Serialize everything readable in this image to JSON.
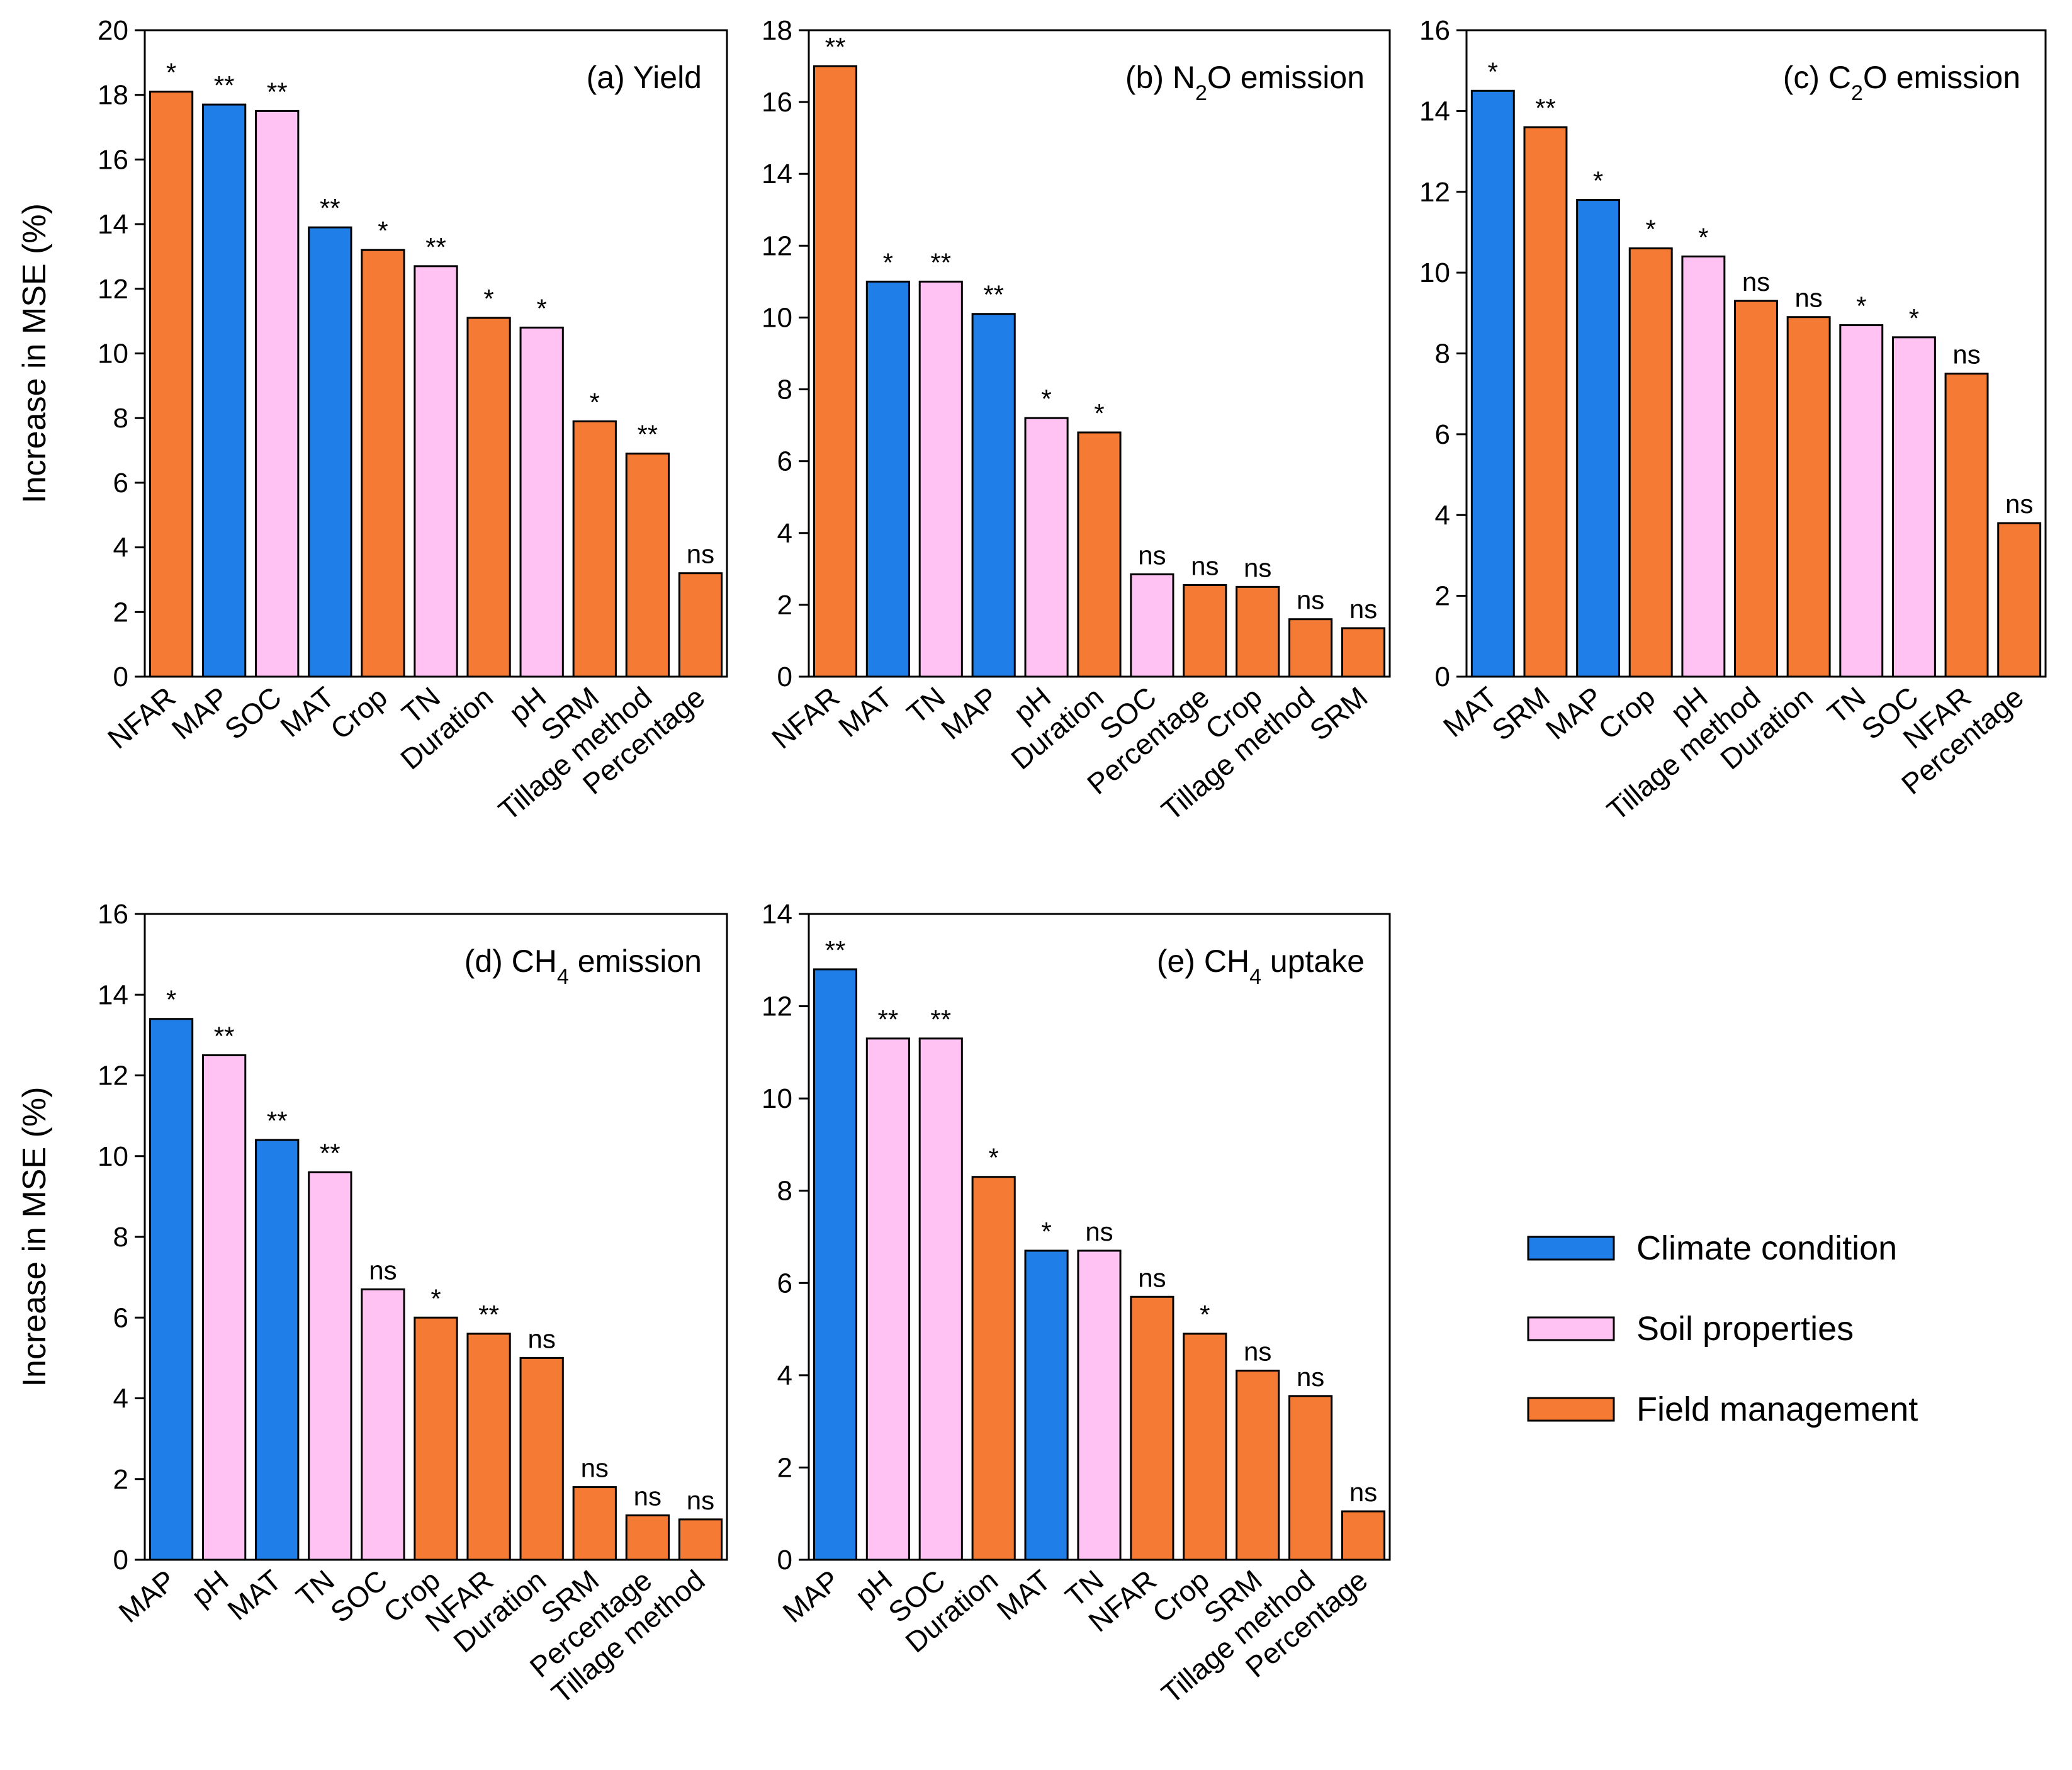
{
  "figure": {
    "colors": {
      "Climate condition": "#1f7ee8",
      "Soil properties": "#ffc2f2",
      "Field management": "#f57a33"
    },
    "legend": [
      {
        "label": "Climate condition",
        "group": "Climate condition"
      },
      {
        "label": "Soil properties",
        "group": "Soil properties"
      },
      {
        "label": "Field management",
        "group": "Field management"
      }
    ]
  },
  "chart_data": [
    {
      "type": "bar",
      "title": "(a) Yield",
      "title_parts": {
        "pre": "(a) Yield",
        "sub": "",
        "post": ""
      },
      "ylabel": "Increase in MSE (%)",
      "xlabel": "",
      "ylim": [
        0,
        20
      ],
      "yticks": [
        0,
        2,
        4,
        6,
        8,
        10,
        12,
        14,
        16,
        18,
        20
      ],
      "categories": [
        "NFAR",
        "MAP",
        "SOC",
        "MAT",
        "Crop",
        "TN",
        "Duration",
        "pH",
        "SRM",
        "Tillage method",
        "Percentage"
      ],
      "values": [
        18.1,
        17.7,
        17.5,
        13.9,
        13.2,
        12.7,
        11.1,
        10.8,
        7.9,
        6.9,
        3.2
      ],
      "groups": [
        "Field management",
        "Climate condition",
        "Soil properties",
        "Climate condition",
        "Field management",
        "Soil properties",
        "Field management",
        "Soil properties",
        "Field management",
        "Field management",
        "Field management"
      ],
      "significance": [
        "*",
        "**",
        "**",
        "**",
        "*",
        "**",
        "*",
        "*",
        "*",
        "**",
        "ns"
      ]
    },
    {
      "type": "bar",
      "title": "(b) N2O emission",
      "title_parts": {
        "pre": "(b) N",
        "sub": "2",
        "post": "O emission"
      },
      "ylabel": "",
      "xlabel": "",
      "ylim": [
        0,
        18
      ],
      "yticks": [
        0,
        2,
        4,
        6,
        8,
        10,
        12,
        14,
        16,
        18
      ],
      "categories": [
        "NFAR",
        "MAT",
        "TN",
        "MAP",
        "pH",
        "Duration",
        "SOC",
        "Percentage",
        "Crop",
        "Tillage method",
        "SRM"
      ],
      "values": [
        17.0,
        11.0,
        11.0,
        10.1,
        7.2,
        6.8,
        2.85,
        2.55,
        2.5,
        1.6,
        1.35
      ],
      "groups": [
        "Field management",
        "Climate condition",
        "Soil properties",
        "Climate condition",
        "Soil properties",
        "Field management",
        "Soil properties",
        "Field management",
        "Field management",
        "Field management",
        "Field management"
      ],
      "significance": [
        "**",
        "*",
        "**",
        "**",
        "*",
        "*",
        "ns",
        "ns",
        "ns",
        "ns",
        "ns"
      ]
    },
    {
      "type": "bar",
      "title": "(c) C2O emission",
      "title_parts": {
        "pre": "(c) C",
        "sub": "2",
        "post": "O emission"
      },
      "ylabel": "",
      "xlabel": "",
      "ylim": [
        0,
        16
      ],
      "yticks": [
        0,
        2,
        4,
        6,
        8,
        10,
        12,
        14,
        16
      ],
      "categories": [
        "MAT",
        "SRM",
        "MAP",
        "Crop",
        "pH",
        "Tillage method",
        "Duration",
        "TN",
        "SOC",
        "NFAR",
        "Percentage"
      ],
      "values": [
        14.5,
        13.6,
        11.8,
        10.6,
        10.4,
        9.3,
        8.9,
        8.7,
        8.4,
        7.5,
        3.8
      ],
      "groups": [
        "Climate condition",
        "Field management",
        "Climate condition",
        "Field management",
        "Soil properties",
        "Field management",
        "Field management",
        "Soil properties",
        "Soil properties",
        "Field management",
        "Field management"
      ],
      "significance": [
        "*",
        "**",
        "*",
        "*",
        "*",
        "ns",
        "ns",
        "*",
        "*",
        "ns",
        "ns"
      ]
    },
    {
      "type": "bar",
      "title": "(d) CH4 emission",
      "title_parts": {
        "pre": "(d) CH",
        "sub": "4",
        "post": " emission"
      },
      "ylabel": "Increase in MSE (%)",
      "xlabel": "",
      "ylim": [
        0,
        16
      ],
      "yticks": [
        0,
        2,
        4,
        6,
        8,
        10,
        12,
        14,
        16
      ],
      "categories": [
        "MAP",
        "pH",
        "MAT",
        "TN",
        "SOC",
        "Crop",
        "NFAR",
        "Duration",
        "SRM",
        "Percentage",
        "Tillage method"
      ],
      "values": [
        13.4,
        12.5,
        10.4,
        9.6,
        6.7,
        6.0,
        5.6,
        5.0,
        1.8,
        1.1,
        1.0
      ],
      "groups": [
        "Climate condition",
        "Soil properties",
        "Climate condition",
        "Soil properties",
        "Soil properties",
        "Field management",
        "Field management",
        "Field management",
        "Field management",
        "Field management",
        "Field management"
      ],
      "significance": [
        "*",
        "**",
        "**",
        "**",
        "ns",
        "*",
        "**",
        "ns",
        "ns",
        "ns",
        "ns"
      ]
    },
    {
      "type": "bar",
      "title": "(e) CH4 uptake",
      "title_parts": {
        "pre": "(e) CH",
        "sub": "4",
        "post": " uptake"
      },
      "ylabel": "",
      "xlabel": "",
      "ylim": [
        0,
        14
      ],
      "yticks": [
        0,
        2,
        4,
        6,
        8,
        10,
        12,
        14
      ],
      "categories": [
        "MAP",
        "pH",
        "SOC",
        "Duration",
        "MAT",
        "TN",
        "NFAR",
        "Crop",
        "SRM",
        "Tillage method",
        "Percentage"
      ],
      "values": [
        12.8,
        11.3,
        11.3,
        8.3,
        6.7,
        6.7,
        5.7,
        4.9,
        4.1,
        3.55,
        1.05
      ],
      "groups": [
        "Climate condition",
        "Soil properties",
        "Soil properties",
        "Field management",
        "Climate condition",
        "Soil properties",
        "Field management",
        "Field management",
        "Field management",
        "Field management",
        "Field management"
      ],
      "significance": [
        "**",
        "**",
        "**",
        "*",
        "*",
        "ns",
        "ns",
        "*",
        "ns",
        "ns",
        "ns"
      ]
    }
  ]
}
